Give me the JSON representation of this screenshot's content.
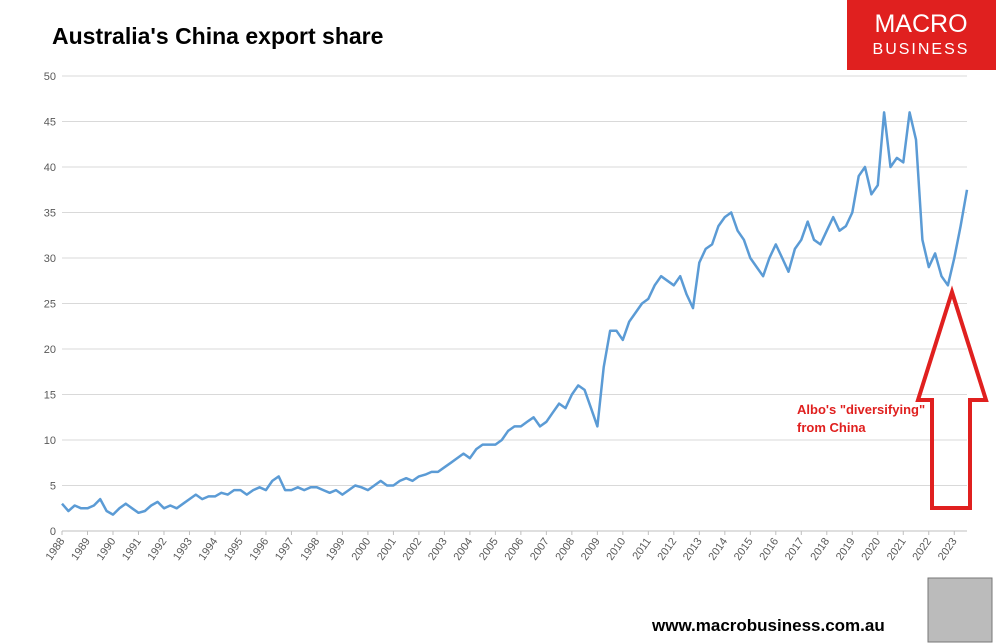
{
  "chart_data": {
    "type": "line",
    "title": "Australia's China export share",
    "logo": [
      "MACRO",
      "BUSINESS"
    ],
    "footer": "www.macrobusiness.com.au",
    "annotation": [
      "Albo's \"diversifying\"",
      "from China"
    ],
    "xlim": [
      1988,
      2023.5
    ],
    "xticks": [
      1988,
      1989,
      1990,
      1991,
      1992,
      1993,
      1994,
      1995,
      1996,
      1997,
      1998,
      1999,
      2000,
      2001,
      2002,
      2003,
      2004,
      2005,
      2006,
      2007,
      2008,
      2009,
      2010,
      2011,
      2012,
      2013,
      2014,
      2015,
      2016,
      2017,
      2018,
      2019,
      2020,
      2021,
      2022,
      2023
    ],
    "ylim": [
      0,
      50
    ],
    "yticks": [
      0,
      5,
      10,
      15,
      20,
      25,
      30,
      35,
      40,
      45,
      50
    ],
    "grid": true,
    "series": [
      {
        "color": "#5b9bd5",
        "x": [
          1988,
          1988.25,
          1988.5,
          1988.75,
          1989,
          1989.25,
          1989.5,
          1989.75,
          1990,
          1990.25,
          1990.5,
          1990.75,
          1991,
          1991.25,
          1991.5,
          1991.75,
          1992,
          1992.25,
          1992.5,
          1992.75,
          1993,
          1993.25,
          1993.5,
          1993.75,
          1994,
          1994.25,
          1994.5,
          1994.75,
          1995,
          1995.25,
          1995.5,
          1995.75,
          1996,
          1996.25,
          1996.5,
          1996.75,
          1997,
          1997.25,
          1997.5,
          1997.75,
          1998,
          1998.25,
          1998.5,
          1998.75,
          1999,
          1999.25,
          1999.5,
          1999.75,
          2000,
          2000.25,
          2000.5,
          2000.75,
          2001,
          2001.25,
          2001.5,
          2001.75,
          2002,
          2002.25,
          2002.5,
          2002.75,
          2003,
          2003.25,
          2003.5,
          2003.75,
          2004,
          2004.25,
          2004.5,
          2004.75,
          2005,
          2005.25,
          2005.5,
          2005.75,
          2006,
          2006.25,
          2006.5,
          2006.75,
          2007,
          2007.25,
          2007.5,
          2007.75,
          2008,
          2008.25,
          2008.5,
          2008.75,
          2009,
          2009.25,
          2009.5,
          2009.75,
          2010,
          2010.25,
          2010.5,
          2010.75,
          2011,
          2011.25,
          2011.5,
          2011.75,
          2012,
          2012.25,
          2012.5,
          2012.75,
          2013,
          2013.25,
          2013.5,
          2013.75,
          2014,
          2014.25,
          2014.5,
          2014.75,
          2015,
          2015.25,
          2015.5,
          2015.75,
          2016,
          2016.25,
          2016.5,
          2016.75,
          2017,
          2017.25,
          2017.5,
          2017.75,
          2018,
          2018.25,
          2018.5,
          2018.75,
          2019,
          2019.25,
          2019.5,
          2019.75,
          2020,
          2020.25,
          2020.5,
          2020.75,
          2021,
          2021.25,
          2021.5,
          2021.75,
          2022,
          2022.25,
          2022.5,
          2022.75,
          2023,
          2023.25,
          2023.5
        ],
        "values": [
          3.0,
          2.2,
          2.8,
          2.5,
          2.5,
          2.8,
          3.5,
          2.2,
          1.8,
          2.5,
          3.0,
          2.5,
          2.0,
          2.2,
          2.8,
          3.2,
          2.5,
          2.8,
          2.5,
          3.0,
          3.5,
          4.0,
          3.5,
          3.8,
          3.8,
          4.2,
          4.0,
          4.5,
          4.5,
          4.0,
          4.5,
          4.8,
          4.5,
          5.5,
          6.0,
          4.5,
          4.5,
          4.8,
          4.5,
          4.8,
          4.8,
          4.5,
          4.2,
          4.5,
          4.0,
          4.5,
          5.0,
          4.8,
          4.5,
          5.0,
          5.5,
          5.0,
          5.0,
          5.5,
          5.8,
          5.5,
          6.0,
          6.2,
          6.5,
          6.5,
          7.0,
          7.5,
          8.0,
          8.5,
          8.0,
          9.0,
          9.5,
          9.5,
          9.5,
          10.0,
          11.0,
          11.5,
          11.5,
          12.0,
          12.5,
          11.5,
          12.0,
          13.0,
          14.0,
          13.5,
          15.0,
          16.0,
          15.5,
          13.5,
          11.5,
          18.0,
          22.0,
          22.0,
          21.0,
          23.0,
          24.0,
          25.0,
          25.5,
          27.0,
          28.0,
          27.5,
          27.0,
          28.0,
          26.0,
          24.5,
          29.5,
          31.0,
          31.5,
          33.5,
          34.5,
          35.0,
          33.0,
          32.0,
          30.0,
          29.0,
          28.0,
          30.0,
          31.5,
          30.0,
          28.5,
          31.0,
          32.0,
          34.0,
          32.0,
          31.5,
          33.0,
          34.5,
          33.0,
          33.5,
          35.0,
          39.0,
          40.0,
          37.0,
          38.0,
          46.0,
          40.0,
          41.0,
          40.5,
          46.0,
          43.0,
          32.0,
          29.0,
          30.5,
          28.0,
          27.0,
          30.0,
          33.5,
          37.5
        ]
      }
    ]
  }
}
